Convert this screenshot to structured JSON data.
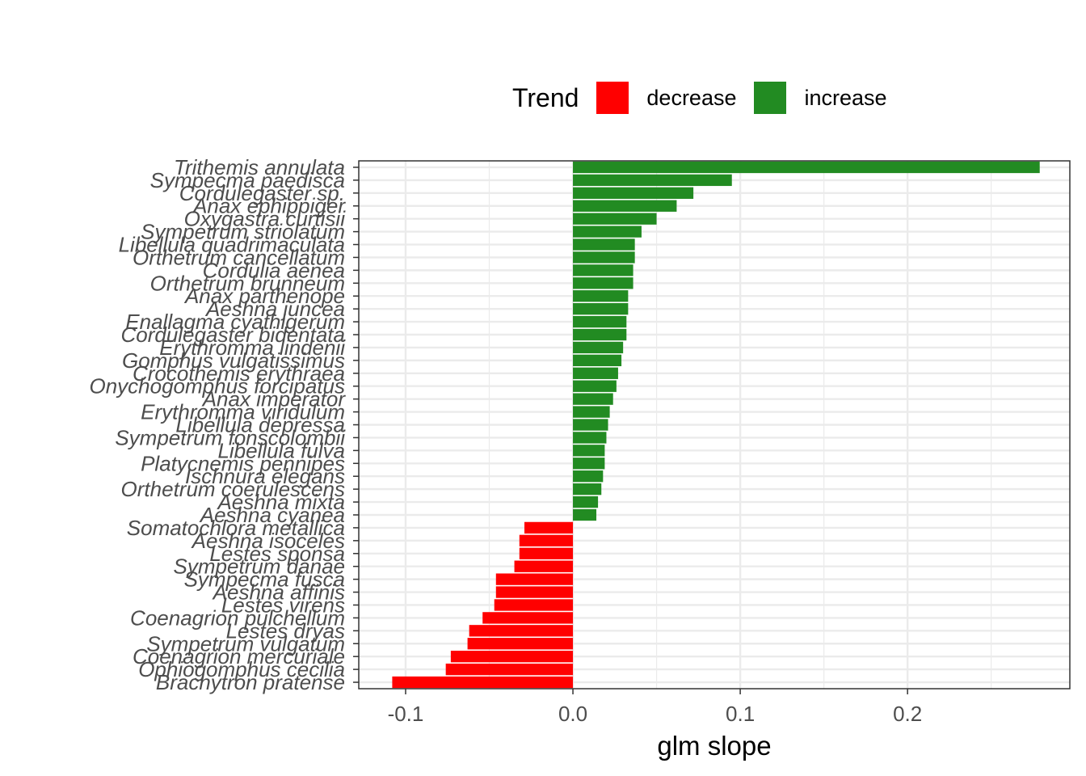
{
  "chart_data": {
    "type": "bar",
    "orientation": "horizontal",
    "xlabel": "glm slope",
    "ylabel": "",
    "xlim": [
      -0.128,
      0.297
    ],
    "xticks": [
      -0.1,
      0.0,
      0.1,
      0.2
    ],
    "xtick_labels": [
      "-0.1",
      "0.0",
      "0.1",
      "0.2"
    ],
    "grid": true,
    "legend": {
      "title": "Trend",
      "position": "top",
      "items": [
        {
          "label": "decrease",
          "color": "#FF0000"
        },
        {
          "label": "increase",
          "color": "#228B22"
        }
      ]
    },
    "categories": [
      "Trithemis annulata",
      "Sympecma paedisca",
      "Cordulegaster sp.",
      "Anax ephippiger",
      "Oxygastra curtisii",
      "Sympetrum striolatum",
      "Libellula quadrimaculata",
      "Orthetrum cancellatum",
      "Cordulia aenea",
      "Orthetrum brunneum",
      "Anax parthenope",
      "Aeshna juncea",
      "Enallagma cyathigerum",
      "Cordulegaster bidentata",
      "Erythromma lindenii",
      "Gomphus vulgatissimus",
      "Crocothemis erythraea",
      "Onychogomphus forcipatus",
      "Anax imperator",
      "Erythromma viridulum",
      "Libellula depressa",
      "Sympetrum fonscolombii",
      "Libellula fulva",
      "Platycnemis pennipes",
      "Ischnura elegans",
      "Orthetrum coerulescens",
      "Aeshna mixta",
      "Aeshna cyanea",
      "Somatochlora metallica",
      "Aeshna isoceles",
      "Lestes sponsa",
      "Sympetrum danae",
      "Sympecma fusca",
      "Aeshna affinis",
      "Lestes virens",
      "Coenagrion pulchellum",
      "Lestes dryas",
      "Sympetrum vulgatum",
      "Coenagrion mercuriale",
      "Ophiogomphus cecilia",
      "Brachytron pratense"
    ],
    "values": [
      0.279,
      0.095,
      0.072,
      0.062,
      0.05,
      0.041,
      0.037,
      0.037,
      0.036,
      0.036,
      0.033,
      0.033,
      0.032,
      0.032,
      0.03,
      0.029,
      0.027,
      0.026,
      0.024,
      0.022,
      0.021,
      0.02,
      0.019,
      0.019,
      0.018,
      0.017,
      0.015,
      0.014,
      -0.029,
      -0.032,
      -0.032,
      -0.035,
      -0.046,
      -0.046,
      -0.047,
      -0.054,
      -0.062,
      -0.063,
      -0.073,
      -0.076,
      -0.108
    ],
    "trend": [
      "increase",
      "increase",
      "increase",
      "increase",
      "increase",
      "increase",
      "increase",
      "increase",
      "increase",
      "increase",
      "increase",
      "increase",
      "increase",
      "increase",
      "increase",
      "increase",
      "increase",
      "increase",
      "increase",
      "increase",
      "increase",
      "increase",
      "increase",
      "increase",
      "increase",
      "increase",
      "increase",
      "increase",
      "decrease",
      "decrease",
      "decrease",
      "decrease",
      "decrease",
      "decrease",
      "decrease",
      "decrease",
      "decrease",
      "decrease",
      "decrease",
      "decrease",
      "decrease"
    ]
  }
}
